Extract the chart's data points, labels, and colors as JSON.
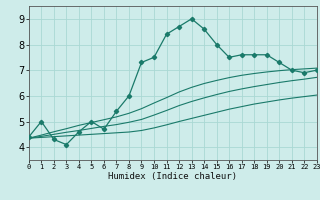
{
  "title": "",
  "xlabel": "Humidex (Indice chaleur)",
  "xlim": [
    0,
    23
  ],
  "ylim": [
    3.5,
    9.5
  ],
  "yticks": [
    4,
    5,
    6,
    7,
    8,
    9
  ],
  "xticks": [
    0,
    1,
    2,
    3,
    4,
    5,
    6,
    7,
    8,
    9,
    10,
    11,
    12,
    13,
    14,
    15,
    16,
    17,
    18,
    19,
    20,
    21,
    22,
    23
  ],
  "background_color": "#ceecea",
  "grid_color": "#aad8d4",
  "line_color": "#1a7a6a",
  "hours": [
    0,
    1,
    2,
    3,
    4,
    5,
    6,
    7,
    8,
    9,
    10,
    11,
    12,
    13,
    14,
    15,
    16,
    17,
    18,
    19,
    20,
    21,
    22,
    23
  ],
  "main_data": [
    4.4,
    5.0,
    4.3,
    4.1,
    4.6,
    5.0,
    4.7,
    5.4,
    6.0,
    7.3,
    7.5,
    8.4,
    8.7,
    9.0,
    8.6,
    8.0,
    7.5,
    7.6,
    7.6,
    7.6,
    7.3,
    7.0,
    6.9,
    7.0
  ],
  "trend_low": [
    4.35,
    4.38,
    4.41,
    4.44,
    4.47,
    4.5,
    4.53,
    4.56,
    4.59,
    4.65,
    4.75,
    4.87,
    5.0,
    5.12,
    5.24,
    5.36,
    5.48,
    5.58,
    5.68,
    5.76,
    5.84,
    5.91,
    5.97,
    6.03
  ],
  "trend_mid": [
    4.35,
    4.42,
    4.5,
    4.58,
    4.65,
    4.73,
    4.81,
    4.88,
    4.97,
    5.08,
    5.25,
    5.43,
    5.62,
    5.78,
    5.92,
    6.05,
    6.17,
    6.27,
    6.36,
    6.44,
    6.52,
    6.59,
    6.65,
    6.72
  ],
  "trend_high": [
    4.35,
    4.47,
    4.6,
    4.72,
    4.85,
    4.96,
    5.07,
    5.18,
    5.32,
    5.5,
    5.72,
    5.93,
    6.15,
    6.33,
    6.48,
    6.6,
    6.71,
    6.8,
    6.87,
    6.93,
    6.98,
    7.02,
    7.05,
    7.08
  ]
}
